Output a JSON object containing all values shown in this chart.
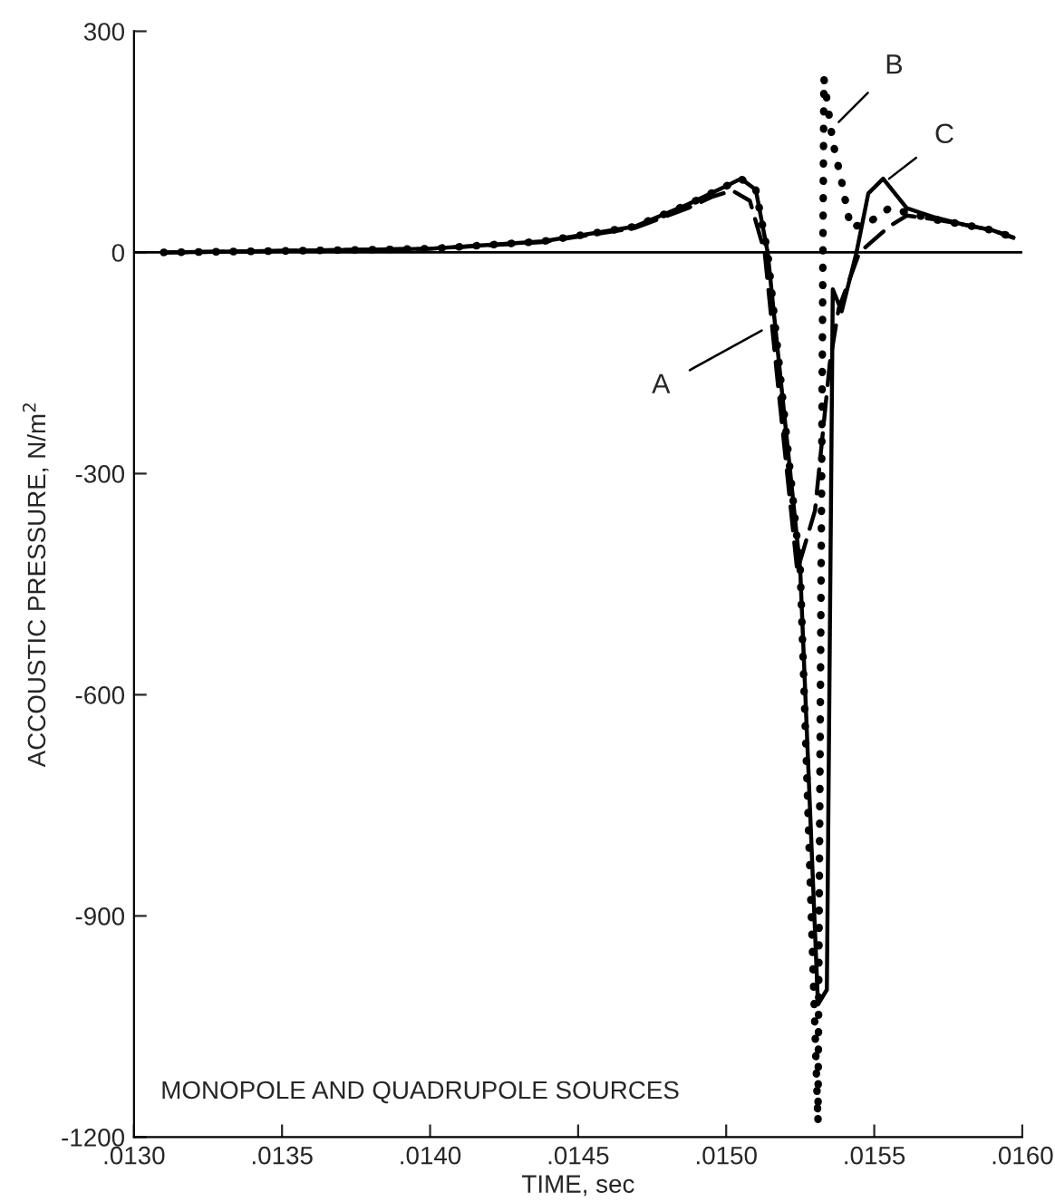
{
  "chart_data": {
    "type": "line",
    "xlabel": "TIME, sec",
    "ylabel": "ACCOUSTIC PRESSURE, N/m$^{2}$",
    "xlim": [
      0.013,
      0.016
    ],
    "ylim": [
      -1200,
      300
    ],
    "xticks": [
      {
        "value": 0.013,
        "label": ".0130"
      },
      {
        "value": 0.0135,
        "label": ".0135"
      },
      {
        "value": 0.014,
        "label": ".0140"
      },
      {
        "value": 0.0145,
        "label": ".0145"
      },
      {
        "value": 0.015,
        "label": ".0150"
      },
      {
        "value": 0.0155,
        "label": ".0155"
      },
      {
        "value": 0.016,
        "label": ".0160"
      }
    ],
    "yticks": [
      300,
      0,
      -300,
      -600,
      -900,
      -1200
    ],
    "grid": false,
    "legend": false,
    "marker": "none",
    "ref_lines": [
      {
        "axis": "y",
        "value": 0,
        "color": "#000000",
        "line_style": "solid"
      }
    ],
    "series": [
      {
        "color": "#000000",
        "line_style": "dashed",
        "x": [
          0.0131,
          0.0135,
          0.014,
          0.01438,
          0.01469,
          0.01487,
          0.01495,
          0.01502,
          0.01508,
          0.01513,
          0.01518,
          0.01524,
          0.0153,
          0.01535,
          0.01538,
          0.01545,
          0.01555,
          0.01561,
          0.0157,
          0.0158,
          0.0159,
          0.01597
        ],
        "values": [
          0,
          2,
          5,
          14,
          33,
          60,
          75,
          84,
          70,
          0,
          -200,
          -432,
          -350,
          -150,
          -76,
          0,
          35,
          50,
          45,
          38,
          30,
          20
        ]
      },
      {
        "color": "#000000",
        "line_style": "dotted",
        "x": [
          0.0131,
          0.0135,
          0.014,
          0.01438,
          0.01469,
          0.01487,
          0.015,
          0.01505,
          0.0151,
          0.01514,
          0.01525,
          0.01531,
          0.01533,
          0.01536,
          0.01539,
          0.01542,
          0.01548,
          0.01555,
          0.0156,
          0.0157,
          0.0158,
          0.0159,
          0.01597
        ],
        "values": [
          0,
          2,
          5,
          15,
          35,
          65,
          90,
          100,
          85,
          0,
          -430,
          -1180,
          236,
          150,
          96,
          34,
          40,
          60,
          55,
          45,
          38,
          30,
          20
        ]
      },
      {
        "color": "#000000",
        "line_style": "solid",
        "x": [
          0.0131,
          0.0135,
          0.014,
          0.01438,
          0.01469,
          0.01487,
          0.015,
          0.01505,
          0.0151,
          0.01514,
          0.01525,
          0.01531,
          0.01534,
          0.01536,
          0.01539,
          0.01544,
          0.01548,
          0.01553,
          0.01561,
          0.0157,
          0.0158,
          0.0159,
          0.01597
        ],
        "values": [
          0,
          2,
          5,
          15,
          35,
          65,
          90,
          100,
          85,
          0,
          -430,
          -1020,
          -1000,
          -50,
          -80,
          0,
          80,
          100,
          60,
          48,
          38,
          30,
          20
        ]
      }
    ],
    "annotations": [
      {
        "text": "A",
        "x": 0.01512,
        "y": -106
      },
      {
        "text": "B",
        "x": 0.01538,
        "y": 177
      },
      {
        "text": "C",
        "x": 0.01555,
        "y": 100
      },
      "MONOPOLE AND QUADRUPOLE SOURCES"
    ]
  }
}
